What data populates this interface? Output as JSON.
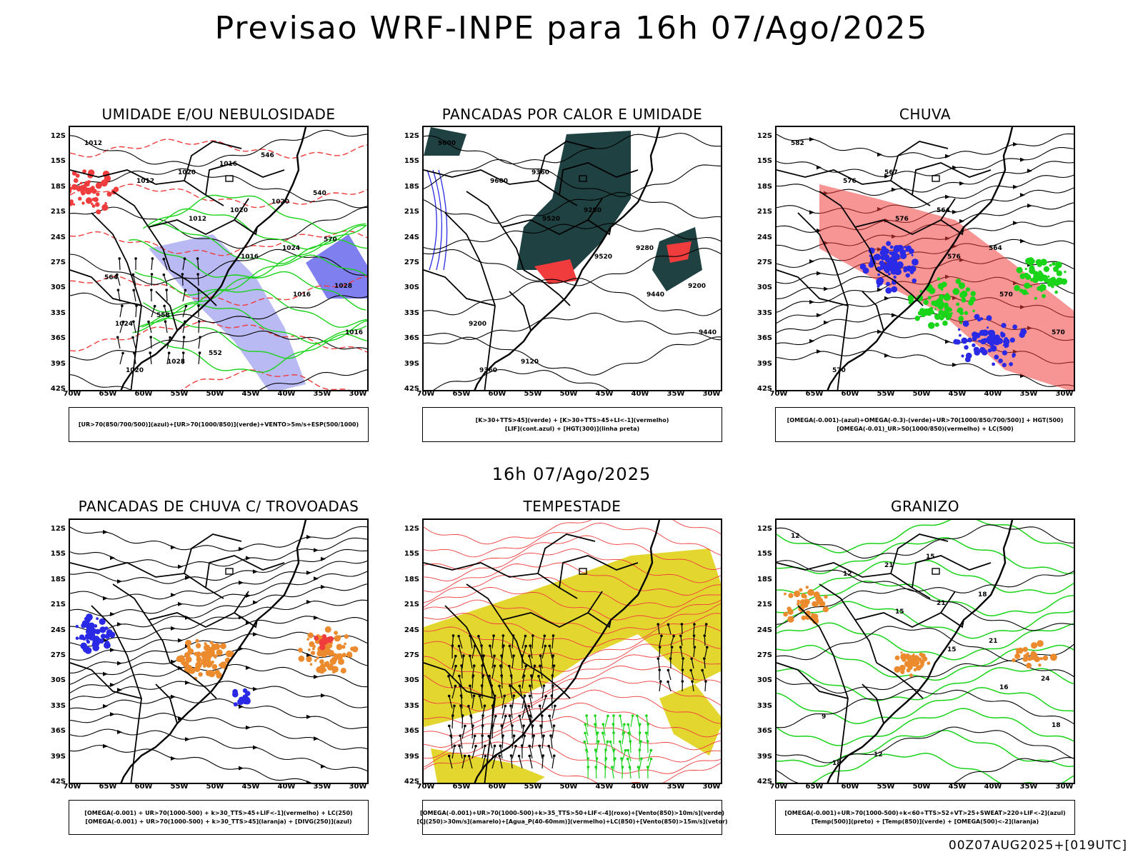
{
  "header": {
    "title": "Previsao WRF-INPE  para 16h 07/Ago/2025",
    "mid_title": "16h 07/Ago/2025",
    "footer": "00Z07AUG2025+[019UTC]"
  },
  "axes": {
    "lat_labels": [
      "12S",
      "15S",
      "18S",
      "21S",
      "24S",
      "27S",
      "30S",
      "33S",
      "36S",
      "39S",
      "42S"
    ],
    "lon_labels": [
      "70W",
      "65W",
      "60W",
      "55W",
      "50W",
      "45W",
      "40W",
      "35W",
      "30W"
    ]
  },
  "panels": [
    {
      "title": "UMIDADE E/OU NEBULOSIDADE",
      "legend": [
        "[UR>70(850/700/500)](azul)+[UR>70(1000/850)](verde)+VENTO>5m/s+ESP(500/1000)"
      ]
    },
    {
      "title": "PANCADAS POR CALOR E UMIDADE",
      "legend": [
        "[K>30+TTS>45](verde) + [K>30+TTS>45+LI<-1](vermelho)",
        "[LIF](cont.azul) + [HGT(300)](linha preta)"
      ]
    },
    {
      "title": "CHUVA",
      "legend": [
        "[OMEGA(-0.001)-(azul)+OMEGA(-0.3)-(verde)+UR>70(1000/850/700/500)] + HGT(500)",
        "[OMEGA(-0.01)_UR>50(1000/850)(vermelho) + LC(500)"
      ]
    },
    {
      "title": "PANCADAS DE CHUVA C/ TROVOADAS",
      "legend": [
        "[OMEGA(-0.001) + UR>70(1000-500) + k>30_TTS>45+LIF<-1](vermelho) + LC(250)",
        "[OMEGA(-0.001) + UR>70(1000-500) + k>30_TTS>45](laranja) + [DIVG(250)](azul)"
      ]
    },
    {
      "title": "TEMPESTADE",
      "legend": [
        "[OMEGA(-0.001)+UR>70(1000-500)+k>35_TTS>50+LIF<-4](roxo)+[Vento(850)>10m/s](verde)",
        "[CJ(250)>30m/s](amarelo)+[Agua_P(40-60mm)](vermelho)+LC(850)+[Vento(850)>15m/s](vetor)"
      ]
    },
    {
      "title": "GRANIZO",
      "legend": [
        "[OMEGA(-0.001)+UR>70(1000-500)+k<60+TTS>52+VT>25+SWEAT>220+LIF<-2](azul)",
        "[Temp(500)](preto) + [Temp(850)](verde) + [OMEGA(500)<-2](laranja)"
      ]
    }
  ],
  "contour_labels": {
    "p0": [
      "1012",
      "1012",
      "1012",
      "1016",
      "1016",
      "1016",
      "1020",
      "1020",
      "1020",
      "1024",
      "1028",
      "1024",
      "1028",
      "1016",
      "1020",
      "570",
      "564",
      "558",
      "552",
      "546",
      "540"
    ],
    "p1": [
      "9600",
      "9600",
      "9520",
      "9520",
      "9440",
      "9440",
      "9360",
      "9360",
      "9280",
      "9280",
      "9200",
      "9200",
      "9120"
    ],
    "p2": [
      "582",
      "576",
      "576",
      "576",
      "570",
      "570",
      "570",
      "567",
      "564",
      "564"
    ],
    "p5": [
      "12",
      "12",
      "15",
      "15",
      "16",
      "18",
      "18",
      "21",
      "21",
      "21",
      "24",
      "9",
      "12",
      "15",
      "18"
    ]
  },
  "colors": {
    "blue": "#2a2ae6",
    "lightblue": "#9b9bf0",
    "green": "#1ad41a",
    "red": "#f03c3c",
    "darkteal": "#1f4141",
    "yellow": "#e3d72f",
    "orange": "#ec8a2e",
    "black": "#000000"
  }
}
